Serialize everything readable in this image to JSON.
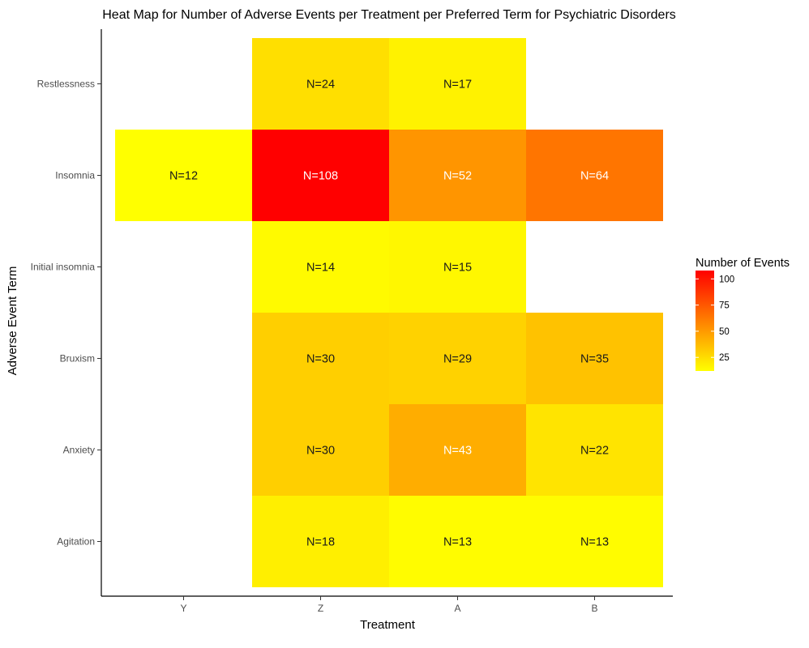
{
  "chart_data": {
    "type": "heatmap",
    "title": "Heat Map for Number of Adverse Events per Treatment per Preferred Term for Psychiatric Disorders",
    "xlabel": "Treatment",
    "ylabel": "Adverse Event Term",
    "x_categories": [
      "Y",
      "Z",
      "A",
      "B"
    ],
    "y_categories": [
      "Restlessness",
      "Insomnia",
      "Initial insomnia",
      "Bruxism",
      "Anxiety",
      "Agitation"
    ],
    "cells": [
      {
        "x": "Z",
        "y": "Restlessness",
        "value": 24,
        "label": "N=24"
      },
      {
        "x": "A",
        "y": "Restlessness",
        "value": 17,
        "label": "N=17"
      },
      {
        "x": "Y",
        "y": "Insomnia",
        "value": 12,
        "label": "N=12"
      },
      {
        "x": "Z",
        "y": "Insomnia",
        "value": 108,
        "label": "N=108"
      },
      {
        "x": "A",
        "y": "Insomnia",
        "value": 52,
        "label": "N=52"
      },
      {
        "x": "B",
        "y": "Insomnia",
        "value": 64,
        "label": "N=64"
      },
      {
        "x": "Z",
        "y": "Initial insomnia",
        "value": 14,
        "label": "N=14"
      },
      {
        "x": "A",
        "y": "Initial insomnia",
        "value": 15,
        "label": "N=15"
      },
      {
        "x": "Z",
        "y": "Bruxism",
        "value": 30,
        "label": "N=30"
      },
      {
        "x": "A",
        "y": "Bruxism",
        "value": 29,
        "label": "N=29"
      },
      {
        "x": "B",
        "y": "Bruxism",
        "value": 35,
        "label": "N=35"
      },
      {
        "x": "Z",
        "y": "Anxiety",
        "value": 30,
        "label": "N=30"
      },
      {
        "x": "A",
        "y": "Anxiety",
        "value": 43,
        "label": "N=43"
      },
      {
        "x": "B",
        "y": "Anxiety",
        "value": 22,
        "label": "N=22"
      },
      {
        "x": "Z",
        "y": "Agitation",
        "value": 18,
        "label": "N=18"
      },
      {
        "x": "A",
        "y": "Agitation",
        "value": 13,
        "label": "N=13"
      },
      {
        "x": "B",
        "y": "Agitation",
        "value": 13,
        "label": "N=13"
      }
    ],
    "color_scale": {
      "low": "#FFFF00",
      "high": "#FF0000",
      "min": 12,
      "max": 108
    },
    "label_dark_color": "#1a1a1a",
    "label_light_color": "#ffffff",
    "legend": {
      "title": "Number of Events",
      "ticks": [
        25,
        50,
        75,
        100
      ],
      "position": "right"
    },
    "grid": false
  }
}
